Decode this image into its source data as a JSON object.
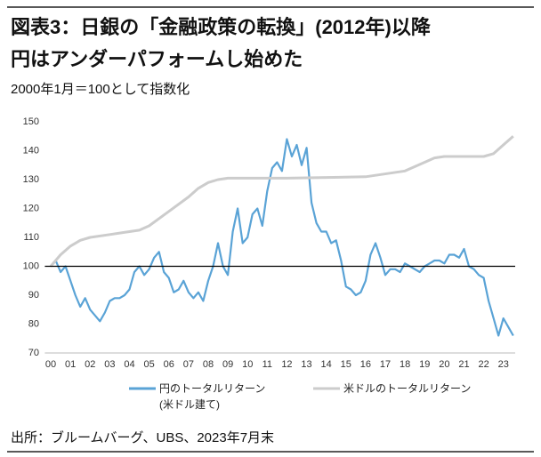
{
  "chart_data": {
    "type": "line",
    "title": [
      "図表3：日銀の「金融政策の転換」(2012年)以降",
      "円はアンダーパフォームし始めた"
    ],
    "subtitle": "2000年1月＝100として指数化",
    "source": "出所：ブルームバーグ、UBS、2023年7月末",
    "xlim": [
      1999.7,
      2023.6
    ],
    "xticks": [
      {
        "value": 2000,
        "label": "00"
      },
      {
        "value": 2001,
        "label": "01"
      },
      {
        "value": 2002,
        "label": "02"
      },
      {
        "value": 2003,
        "label": "03"
      },
      {
        "value": 2004,
        "label": "04"
      },
      {
        "value": 2005,
        "label": "05"
      },
      {
        "value": 2006,
        "label": "06"
      },
      {
        "value": 2007,
        "label": "07"
      },
      {
        "value": 2008,
        "label": "08"
      },
      {
        "value": 2009,
        "label": "09"
      },
      2010,
      2011,
      2012,
      2013,
      2014,
      2015,
      2016,
      2017,
      2018,
      2019,
      2020,
      2021,
      2022,
      2023
    ],
    "ylim": [
      70,
      150
    ],
    "yticks": [
      70,
      80,
      90,
      100,
      110,
      120,
      130,
      140,
      150
    ],
    "reference_line": 100,
    "grid": false,
    "series": [
      {
        "name": "円のトータルリターン(米ドル建て)",
        "color": "#5aa3d6",
        "x": [
          2000,
          2000.25,
          2000.5,
          2000.75,
          2001,
          2001.25,
          2001.5,
          2001.75,
          2002,
          2002.25,
          2002.5,
          2002.75,
          2003,
          2003.25,
          2003.5,
          2003.75,
          2004,
          2004.25,
          2004.5,
          2004.75,
          2005,
          2005.25,
          2005.5,
          2005.75,
          2006,
          2006.25,
          2006.5,
          2006.75,
          2007,
          2007.25,
          2007.5,
          2007.75,
          2008,
          2008.25,
          2008.5,
          2008.75,
          2009,
          2009.25,
          2009.5,
          2009.75,
          2010,
          2010.25,
          2010.5,
          2010.75,
          2011,
          2011.25,
          2011.5,
          2011.75,
          2012,
          2012.25,
          2012.5,
          2012.75,
          2013,
          2013.25,
          2013.5,
          2013.75,
          2014,
          2014.25,
          2014.5,
          2014.75,
          2015,
          2015.25,
          2015.5,
          2015.75,
          2016,
          2016.25,
          2016.5,
          2016.75,
          2017,
          2017.25,
          2017.5,
          2017.75,
          2018,
          2018.25,
          2018.5,
          2018.75,
          2019,
          2019.25,
          2019.5,
          2019.75,
          2020,
          2020.25,
          2020.5,
          2020.75,
          2021,
          2021.25,
          2021.5,
          2021.75,
          2022,
          2022.25,
          2022.5,
          2022.75,
          2023,
          2023.25,
          2023.5
        ],
        "values": [
          100,
          102,
          98,
          100,
          95,
          90,
          86,
          89,
          85,
          83,
          81,
          84,
          88,
          89,
          89,
          90,
          92,
          98,
          100,
          97,
          99,
          103,
          105,
          98,
          96,
          91,
          92,
          95,
          91,
          89,
          91,
          88,
          95,
          100,
          108,
          100,
          97,
          112,
          120,
          108,
          110,
          118,
          120,
          114,
          126,
          134,
          136,
          133,
          144,
          138,
          142,
          135,
          141,
          122,
          115,
          112,
          112,
          108,
          109,
          102,
          93,
          92,
          90,
          91,
          95,
          104,
          108,
          103,
          97,
          99,
          99,
          98,
          101,
          100,
          99,
          98,
          100,
          101,
          102,
          102,
          101,
          104,
          104,
          103,
          106,
          100,
          99,
          97,
          96,
          88,
          82,
          76,
          82,
          79,
          76
        ]
      },
      {
        "name": "米ドルのトータルリターン",
        "color": "#cccccc",
        "x": [
          2000,
          2000.5,
          2001,
          2001.5,
          2002,
          2003,
          2004,
          2004.5,
          2005,
          2006,
          2007,
          2007.5,
          2008,
          2008.5,
          2009,
          2012,
          2016,
          2018,
          2019,
          2019.5,
          2020,
          2022,
          2022.5,
          2023,
          2023.5
        ],
        "values": [
          100,
          104,
          107,
          109,
          110,
          111,
          112,
          112.5,
          114,
          119,
          124,
          127,
          129,
          130,
          130.5,
          130.5,
          131,
          133,
          136,
          137.5,
          138,
          138,
          139,
          142,
          145
        ]
      }
    ]
  }
}
